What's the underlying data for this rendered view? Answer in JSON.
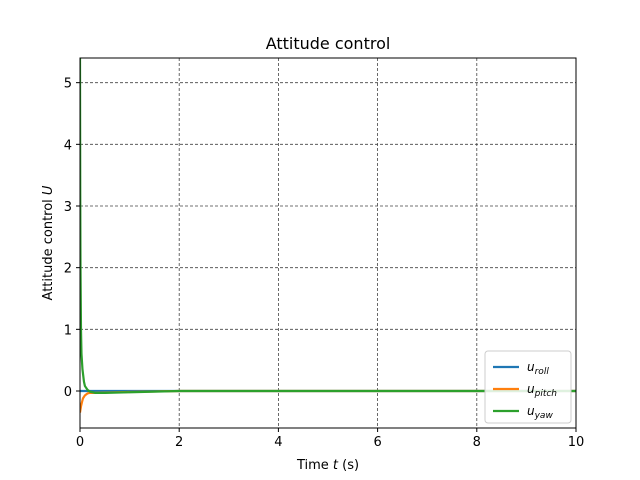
{
  "chart_data": {
    "type": "line",
    "title": "Attitude control",
    "xlabel": "Time t (s)",
    "xlabel_parts": {
      "pre": "Time ",
      "var": "t",
      "post": " (s)"
    },
    "ylabel": "Attitude control U",
    "ylabel_parts": {
      "pre": "Attitude control ",
      "var": "U"
    },
    "xlim": [
      0,
      10
    ],
    "ylim": [
      -0.6,
      5.4
    ],
    "xticks": [
      0,
      2,
      4,
      6,
      8,
      10
    ],
    "yticks": [
      0,
      1,
      2,
      3,
      4,
      5
    ],
    "grid": true,
    "legend_position": "lower-right",
    "series": [
      {
        "name": "u_roll",
        "label_base": "u",
        "label_sub": "roll",
        "color": "#1f77b4",
        "x": [
          0,
          0.02,
          0.05,
          0.1,
          0.2,
          0.3,
          0.5,
          1,
          2,
          4,
          6,
          8,
          10
        ],
        "y": [
          0,
          0,
          0,
          0,
          0,
          0,
          0,
          0,
          0,
          0,
          0,
          0,
          0
        ]
      },
      {
        "name": "u_pitch",
        "label_base": "u",
        "label_sub": "pitch",
        "color": "#ff7f0e",
        "x": [
          0,
          0.01,
          0.02,
          0.04,
          0.06,
          0.1,
          0.15,
          0.2,
          0.3,
          0.5,
          1,
          2,
          4,
          6,
          8,
          10
        ],
        "y": [
          -0.35,
          -0.3,
          -0.25,
          -0.18,
          -0.12,
          -0.07,
          -0.04,
          -0.03,
          -0.03,
          -0.025,
          -0.015,
          0,
          0,
          0,
          0,
          0
        ]
      },
      {
        "name": "u_yaw",
        "label_base": "u",
        "label_sub": "yaw",
        "color": "#2ca02c",
        "x": [
          0,
          0.005,
          0.01,
          0.02,
          0.03,
          0.05,
          0.08,
          0.1,
          0.15,
          0.2,
          0.3,
          0.5,
          1,
          2,
          4,
          6,
          8,
          10
        ],
        "y": [
          5.4,
          3.2,
          2.0,
          1.0,
          0.6,
          0.35,
          0.15,
          0.08,
          0.02,
          -0.01,
          -0.03,
          -0.03,
          -0.02,
          0,
          0,
          0,
          0,
          0
        ]
      }
    ]
  }
}
